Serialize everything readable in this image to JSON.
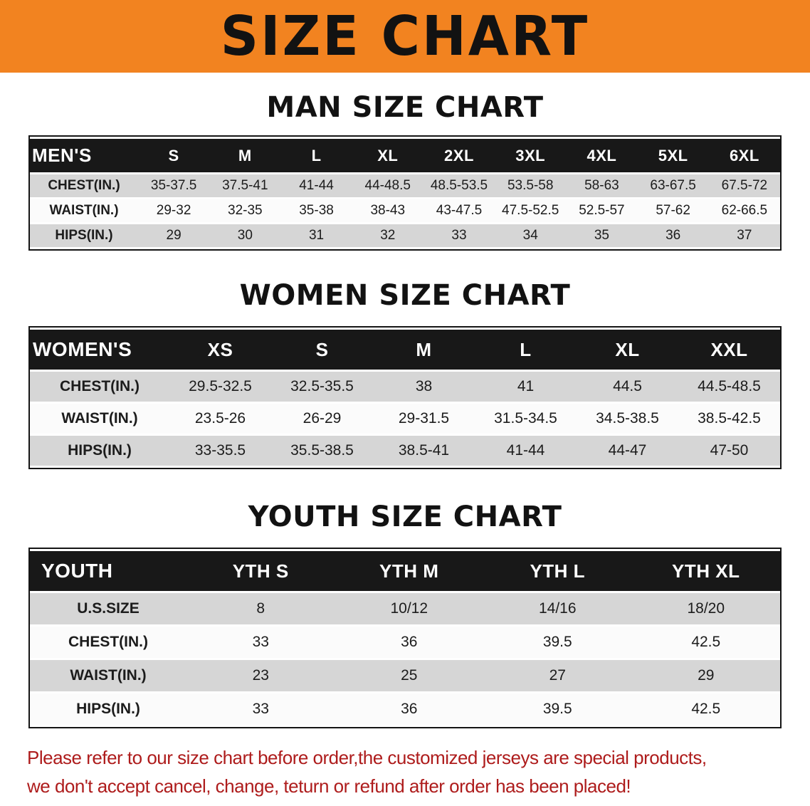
{
  "banner": {
    "title": "SIZE CHART"
  },
  "colors": {
    "banner_bg": "#f28320",
    "table_header_bg": "#181818",
    "row_stripe_gray": "#d6d6d6",
    "note_red": "#ae1c1c"
  },
  "sections": [
    {
      "id": "men",
      "heading": "MAN SIZE CHART",
      "table": {
        "corner": "MEN'S",
        "columns": [
          "S",
          "M",
          "L",
          "XL",
          "2XL",
          "3XL",
          "4XL",
          "5XL",
          "6XL"
        ],
        "rows": [
          {
            "label": "CHEST(IN.)",
            "values": [
              "35-37.5",
              "37.5-41",
              "41-44",
              "44-48.5",
              "48.5-53.5",
              "53.5-58",
              "58-63",
              "63-67.5",
              "67.5-72"
            ]
          },
          {
            "label": "WAIST(IN.)",
            "values": [
              "29-32",
              "32-35",
              "35-38",
              "38-43",
              "43-47.5",
              "47.5-52.5",
              "52.5-57",
              "57-62",
              "62-66.5"
            ]
          },
          {
            "label": "HIPS(IN.)",
            "values": [
              "29",
              "30",
              "31",
              "32",
              "33",
              "34",
              "35",
              "36",
              "37"
            ]
          }
        ]
      }
    },
    {
      "id": "women",
      "heading": "WOMEN SIZE CHART",
      "table": {
        "corner": "WOMEN'S",
        "columns": [
          "XS",
          "S",
          "M",
          "L",
          "XL",
          "XXL"
        ],
        "rows": [
          {
            "label": "CHEST(IN.)",
            "values": [
              "29.5-32.5",
              "32.5-35.5",
              "38",
              "41",
              "44.5",
              "44.5-48.5"
            ]
          },
          {
            "label": "WAIST(IN.)",
            "values": [
              "23.5-26",
              "26-29",
              "29-31.5",
              "31.5-34.5",
              "34.5-38.5",
              "38.5-42.5"
            ]
          },
          {
            "label": "HIPS(IN.)",
            "values": [
              "33-35.5",
              "35.5-38.5",
              "38.5-41",
              "41-44",
              "44-47",
              "47-50"
            ]
          }
        ]
      }
    },
    {
      "id": "youth",
      "heading": "YOUTH SIZE CHART",
      "table": {
        "corner": "YOUTH",
        "columns": [
          "YTH S",
          "YTH M",
          "YTH L",
          "YTH XL"
        ],
        "rows": [
          {
            "label": "U.S.SIZE",
            "values": [
              "8",
              "10/12",
              "14/16",
              "18/20"
            ]
          },
          {
            "label": "CHEST(IN.)",
            "values": [
              "33",
              "36",
              "39.5",
              "42.5"
            ]
          },
          {
            "label": "WAIST(IN.)",
            "values": [
              "23",
              "25",
              "27",
              "29"
            ]
          },
          {
            "label": "HIPS(IN.)",
            "values": [
              "33",
              "36",
              "39.5",
              "42.5"
            ]
          }
        ]
      }
    }
  ],
  "note": {
    "line1": "Please refer to our size chart before order,the customized jerseys are special products,",
    "line2": "we don't accept cancel, change, teturn or refund after order has been placed!"
  }
}
